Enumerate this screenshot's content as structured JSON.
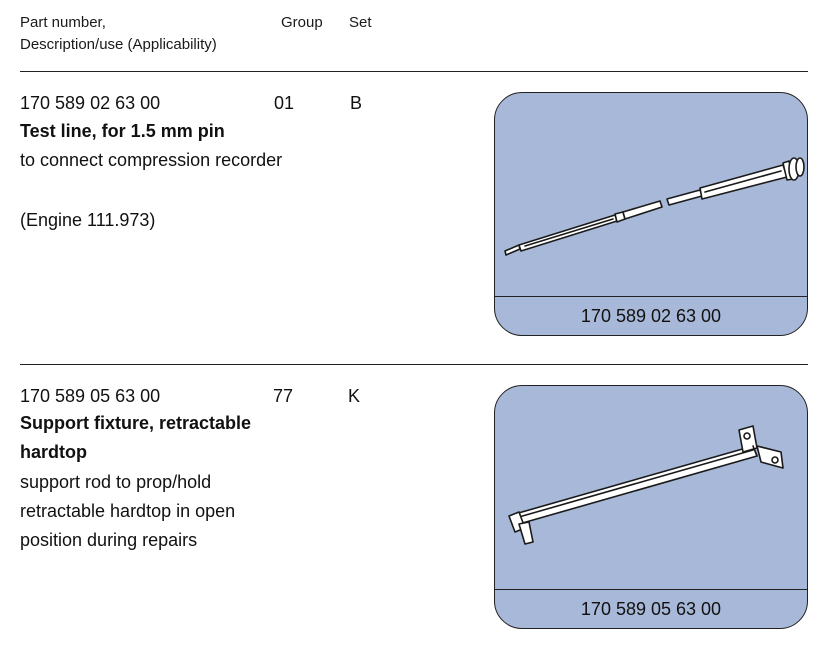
{
  "header": {
    "col_part_line1": "Part number,",
    "col_part_line2": "Description/use (Applicability)",
    "col_group": "Group",
    "col_set": "Set"
  },
  "parts": [
    {
      "part_number": "170 589 02 63 00",
      "group": "01",
      "set": "B",
      "title": "Test line, for 1.5 mm pin",
      "description": "to connect compression recorder",
      "applicability": "(Engine 111.973)",
      "image_caption": "170 589 02 63 00",
      "image_icon": "test-line-tool-icon"
    },
    {
      "part_number": "170 589 05 63 00",
      "group": "77",
      "set": "K",
      "title_line1": "Support fixture, retractable",
      "title_line2": "hardtop",
      "description_line1": "support rod to prop/hold",
      "description_line2": "retractable hardtop in open",
      "description_line3": "position during repairs",
      "image_caption": "170 589 05 63 00",
      "image_icon": "support-fixture-rod-icon"
    }
  ],
  "colors": {
    "card_fill": "#a8b8d8",
    "rule": "#222222"
  }
}
